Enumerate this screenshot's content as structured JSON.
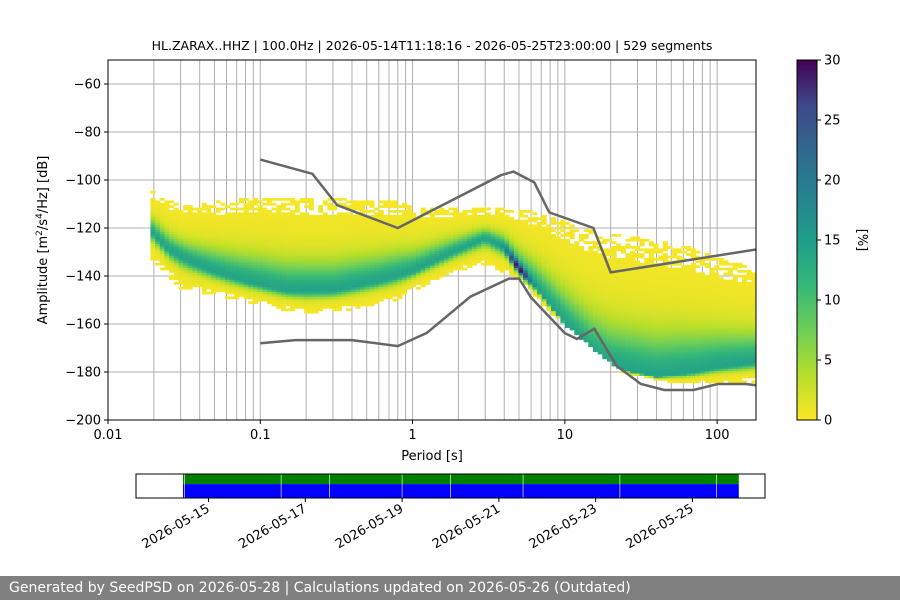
{
  "title": "HL.ZARAX..HHZ | 100.0Hz | 2026-05-14T11:18:16 - 2026-05-25T23:00:00 | 529 segments",
  "footer": "Generated by SeedPSD on 2026-05-28 | Calculations updated on 2026-05-26 (Outdated)",
  "colors": {
    "model_line": "#666666",
    "grid": "#b0b0b0",
    "coverage_green": "#008000",
    "coverage_blue": "#0000ff"
  },
  "chart_data": {
    "type": "heatmap",
    "title": "HL.ZARAX..HHZ | 100.0Hz | 2026-05-14T11:18:16 - 2026-05-25T23:00:00 | 529 segments",
    "xlabel": "Period [s]",
    "ylabel_parts": [
      "Amplitude [m",
      "2",
      "/s",
      "4",
      "/Hz] [dB]"
    ],
    "x_scale": "log",
    "xlim": [
      0.01,
      180
    ],
    "ylim": [
      -200,
      -50
    ],
    "x_ticks": [
      0.01,
      0.1,
      1,
      10,
      100
    ],
    "x_tick_labels": [
      "0.01",
      "0.1",
      "1",
      "10",
      "100"
    ],
    "y_ticks": [
      -200,
      -180,
      -160,
      -140,
      -120,
      -100,
      -80,
      -60
    ],
    "y_tick_labels": [
      "−200",
      "−180",
      "−160",
      "−140",
      "−120",
      "−100",
      "−80",
      "−60"
    ],
    "grid": true,
    "colorbar": {
      "label": "[%]",
      "min": 0,
      "max": 30,
      "ticks": [
        0,
        5,
        10,
        15,
        20,
        25,
        30
      ],
      "tick_labels": [
        "0",
        "5",
        "10",
        "15",
        "20",
        "25",
        "30"
      ],
      "colormap": "viridis_r"
    },
    "distribution": {
      "period_range": [
        0.019,
        180
      ],
      "mode": [
        [
          0.019,
          -121
        ],
        [
          0.025,
          -129
        ],
        [
          0.035,
          -134
        ],
        [
          0.05,
          -138
        ],
        [
          0.08,
          -142
        ],
        [
          0.15,
          -146
        ],
        [
          0.3,
          -146
        ],
        [
          0.6,
          -142
        ],
        [
          1.0,
          -138
        ],
        [
          2.0,
          -129
        ],
        [
          3.0,
          -124
        ],
        [
          4.0,
          -128
        ],
        [
          5.0,
          -137
        ],
        [
          6.5,
          -145
        ],
        [
          10,
          -160
        ],
        [
          15,
          -172
        ],
        [
          20,
          -178
        ],
        [
          40,
          -182
        ],
        [
          70,
          -180
        ],
        [
          100,
          -178
        ],
        [
          180,
          -176
        ]
      ],
      "upper": [
        [
          0.019,
          -104
        ],
        [
          0.03,
          -111
        ],
        [
          0.05,
          -109
        ],
        [
          0.1,
          -107
        ],
        [
          0.2,
          -108
        ],
        [
          0.4,
          -108
        ],
        [
          0.8,
          -109
        ],
        [
          1.0,
          -111
        ],
        [
          2.0,
          -112
        ],
        [
          4.0,
          -112
        ],
        [
          6.0,
          -113
        ],
        [
          9.0,
          -116
        ],
        [
          15,
          -121
        ],
        [
          30,
          -124
        ],
        [
          60,
          -127
        ],
        [
          100,
          -132
        ],
        [
          180,
          -137
        ]
      ],
      "lower": [
        [
          0.019,
          -132
        ],
        [
          0.03,
          -145
        ],
        [
          0.05,
          -148
        ],
        [
          0.1,
          -152
        ],
        [
          0.2,
          -156
        ],
        [
          0.4,
          -154
        ],
        [
          0.8,
          -150
        ],
        [
          1.0,
          -146
        ],
        [
          2.0,
          -138
        ],
        [
          3.0,
          -135
        ],
        [
          5.0,
          -141
        ],
        [
          8.0,
          -155
        ],
        [
          15,
          -170
        ],
        [
          25,
          -181
        ],
        [
          60,
          -185
        ],
        [
          180,
          -184
        ]
      ],
      "peak": {
        "period": 5.0,
        "amplitude": -138,
        "percent": 28
      }
    },
    "series": [
      {
        "name": "",
        "role": "high-noise-model",
        "x": [
          0.1,
          0.22,
          0.32,
          0.8,
          3.8,
          4.6,
          6.3,
          7.9,
          15.4,
          20,
          354.8
        ],
        "y": [
          -91.5,
          -97.4,
          -110.5,
          -120,
          -98,
          -96.5,
          -101,
          -113.5,
          -120,
          -138.5,
          -126
        ]
      },
      {
        "name": "",
        "role": "low-noise-model",
        "x": [
          0.1,
          0.17,
          0.4,
          0.8,
          1.24,
          2.4,
          4.3,
          5,
          6,
          10,
          12,
          15.6,
          21.9,
          31.6,
          45,
          70,
          101,
          154,
          328
        ],
        "y": [
          -168,
          -166.7,
          -166.7,
          -169.2,
          -163.7,
          -148.6,
          -141.1,
          -141.1,
          -149,
          -163.8,
          -166.2,
          -162,
          -177.5,
          -185,
          -187.5,
          -187.5,
          -185,
          -185,
          -187.5
        ]
      }
    ],
    "coverage": {
      "date_ticks": [
        "2026-05-15",
        "2026-05-17",
        "2026-05-19",
        "2026-05-21",
        "2026-05-23",
        "2026-05-25"
      ],
      "range": [
        "2026-05-13T12:00:00",
        "2026-05-26T12:00:00"
      ],
      "available": [
        "2026-05-14T11:18:16",
        "2026-05-25T23:00:00"
      ]
    }
  }
}
